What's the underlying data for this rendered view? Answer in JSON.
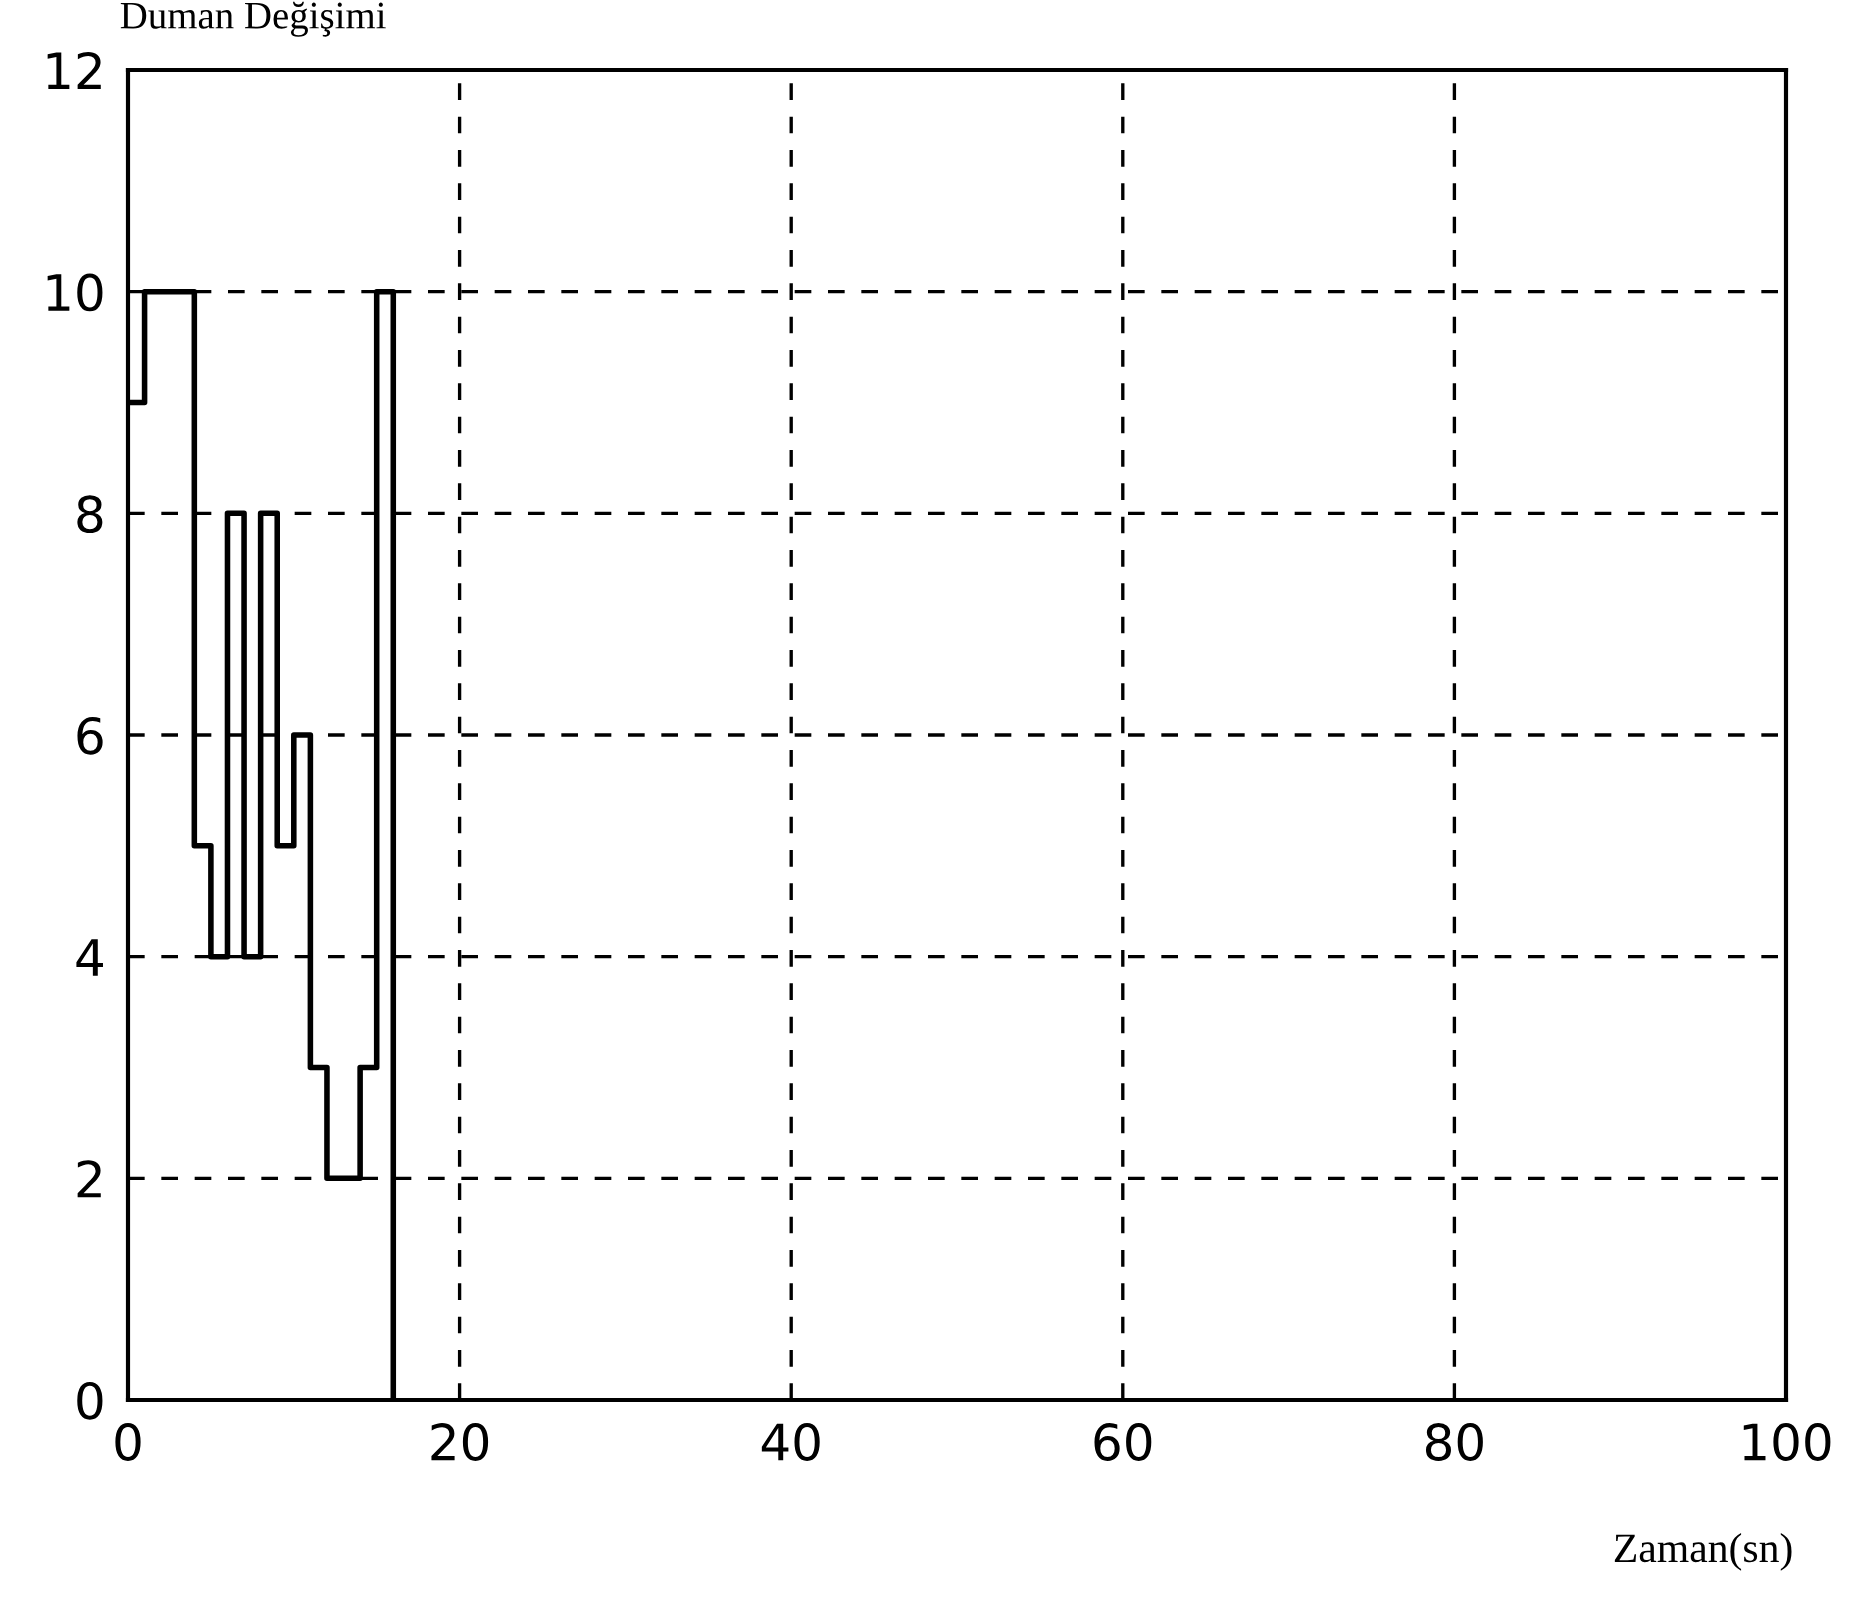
{
  "chart_data": {
    "type": "step",
    "xlabel": "Zaman(sn)",
    "ylabel": "Duman Değişimi",
    "x": [
      0,
      1,
      2,
      3,
      4,
      5,
      6,
      7,
      8,
      9,
      10,
      11,
      12,
      13,
      14,
      15,
      16
    ],
    "series": [
      {
        "color": "#000000",
        "values": [
          9,
          10,
          10,
          10,
          5,
          4,
          8,
          4,
          8,
          5,
          6,
          3,
          2,
          2,
          3,
          10,
          0
        ]
      }
    ],
    "xlim": [
      0,
      100
    ],
    "ylim": [
      0,
      12
    ],
    "xticks": [
      0,
      20,
      40,
      60,
      80,
      100
    ],
    "yticks": [
      0,
      2,
      4,
      6,
      8,
      10,
      12
    ],
    "grid": true,
    "line_style": "solid",
    "marker": "none",
    "legend": false
  }
}
